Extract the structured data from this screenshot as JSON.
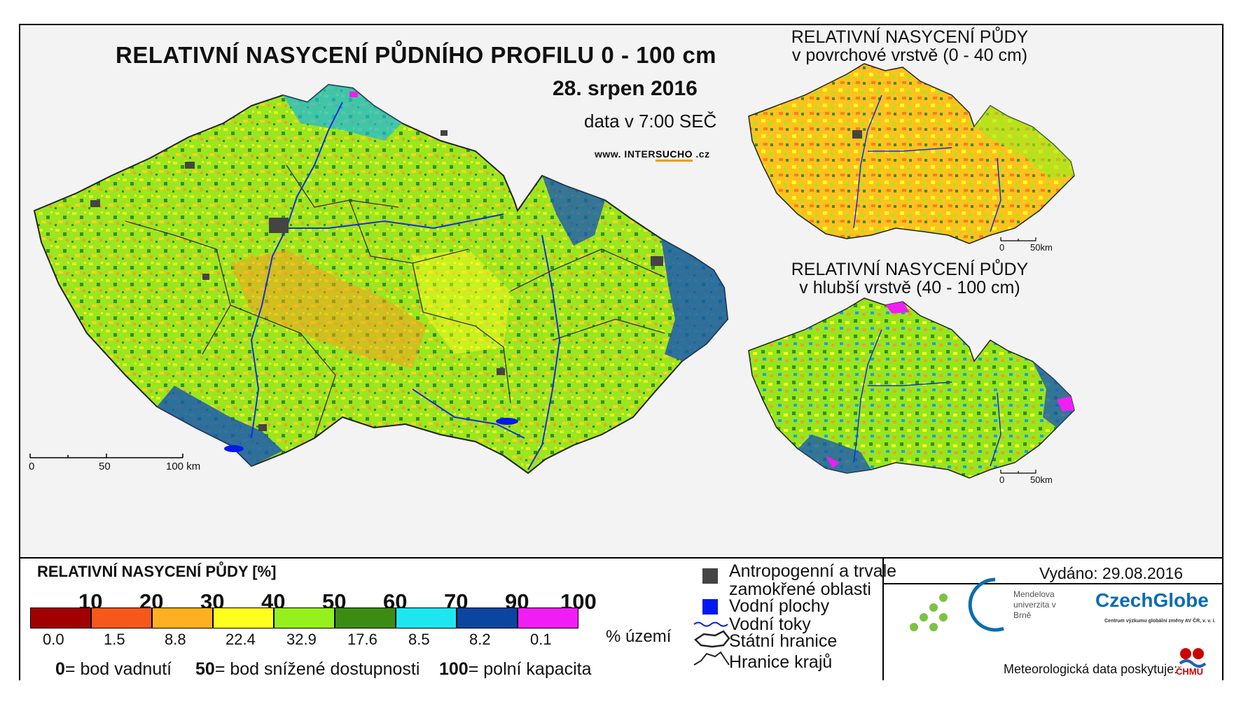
{
  "header": {
    "title": "RELATIVNÍ NASYCENÍ PŮDNÍHO PROFILU 0 - 100 cm",
    "date": "28. srpen 2016",
    "data_time": "data v 7:00 SEČ",
    "web_prefix": "www. INTER",
    "web_accent": "SUCHO",
    "web_suffix": " .cz"
  },
  "main_map": {
    "scale": {
      "labels": [
        "0",
        "50",
        "100 km"
      ]
    }
  },
  "inset_top": {
    "title_line1": "RELATIVNÍ NASYCENÍ PŮDY",
    "title_line2": "v povrchové vrstvě (0 - 40 cm)",
    "scale": {
      "labels": [
        "0",
        "50km"
      ]
    }
  },
  "inset_bottom": {
    "title_line1": "RELATIVNÍ NASYCENÍ PŮDY",
    "title_line2": "v hlubší vrstvě (40 - 100 cm)",
    "scale": {
      "labels": [
        "0",
        "50km"
      ]
    }
  },
  "legend": {
    "title": "RELATIVNÍ NASYCENÍ PŮDY [%]",
    "thresholds": [
      "10",
      "20",
      "30",
      "40",
      "50",
      "60",
      "70",
      "90",
      "100"
    ],
    "classes": [
      {
        "color": "#a00000",
        "percent": "0.0"
      },
      {
        "color": "#f5581a",
        "percent": "1.5"
      },
      {
        "color": "#ffb020",
        "percent": "8.8"
      },
      {
        "color": "#ffff1e",
        "percent": "22.4"
      },
      {
        "color": "#96f01e",
        "percent": "32.9"
      },
      {
        "color": "#3c8c14",
        "percent": "17.6"
      },
      {
        "color": "#1ee6f0",
        "percent": "8.5"
      },
      {
        "color": "#0a46a0",
        "percent": "8.2"
      },
      {
        "color": "#f01ef5",
        "percent": "0.1"
      }
    ],
    "percent_unit": "% území",
    "definitions": [
      {
        "value": "0",
        "text": "= bod vadnutí"
      },
      {
        "value": "50",
        "text": "= bod snížené dostupnosti"
      },
      {
        "value": "100",
        "text": "= polní kapacita"
      }
    ]
  },
  "symbols": [
    {
      "icon": "dark-square-icon",
      "color": "#444444",
      "label": "Antropogenní a trvale"
    },
    {
      "icon": "none",
      "label": "zamokřené oblasti"
    },
    {
      "icon": "blue-square-icon",
      "color": "#0018f0",
      "label": "Vodní plochy"
    },
    {
      "icon": "river-line-icon",
      "color": "#0018f0",
      "label": "Vodní toky"
    },
    {
      "icon": "state-border-icon",
      "label": "Státní hranice"
    },
    {
      "icon": "region-border-icon",
      "label": "Hranice krajů"
    }
  ],
  "footer": {
    "issued": "Vydáno: 29.08.2016",
    "mendel": "Mendelova univerzita v Brně",
    "czechglobe": "CzechGlobe",
    "czechglobe_sub": "Centrum výzkumu globální změny AV ČR, v. v. i.",
    "meteo": "Meteorologická data poskytuje:",
    "chmu": "ČHMÚ"
  }
}
